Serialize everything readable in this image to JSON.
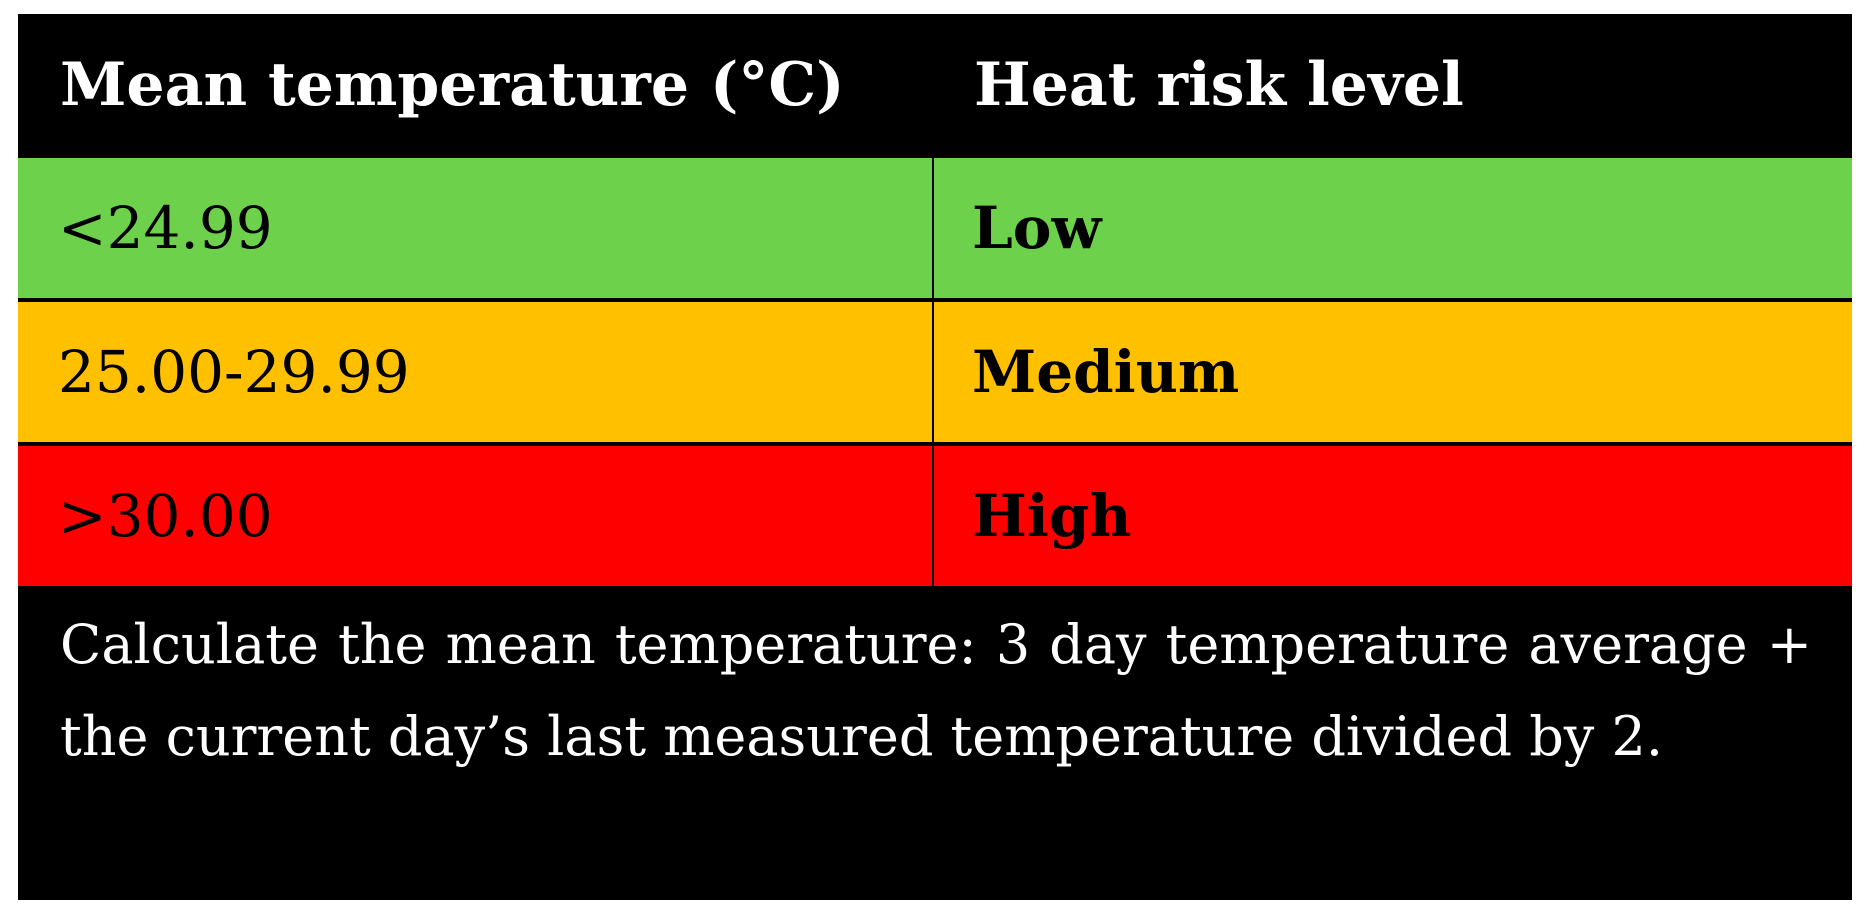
{
  "table": {
    "header": {
      "col1": "Mean temperature (°C)",
      "col2": "Heat risk level"
    },
    "rows": [
      {
        "range": "<24.99",
        "level": "Low",
        "color": "#6ed14b"
      },
      {
        "range": "25.00-29.99",
        "level": "Medium",
        "color": "#ffc000"
      },
      {
        "range": ">30.00",
        "level": "High",
        "color": "#ff0000"
      }
    ],
    "note": "Calculate the mean temperature: 3 day temperature average + the current day’s last measured temperature divided by 2."
  }
}
